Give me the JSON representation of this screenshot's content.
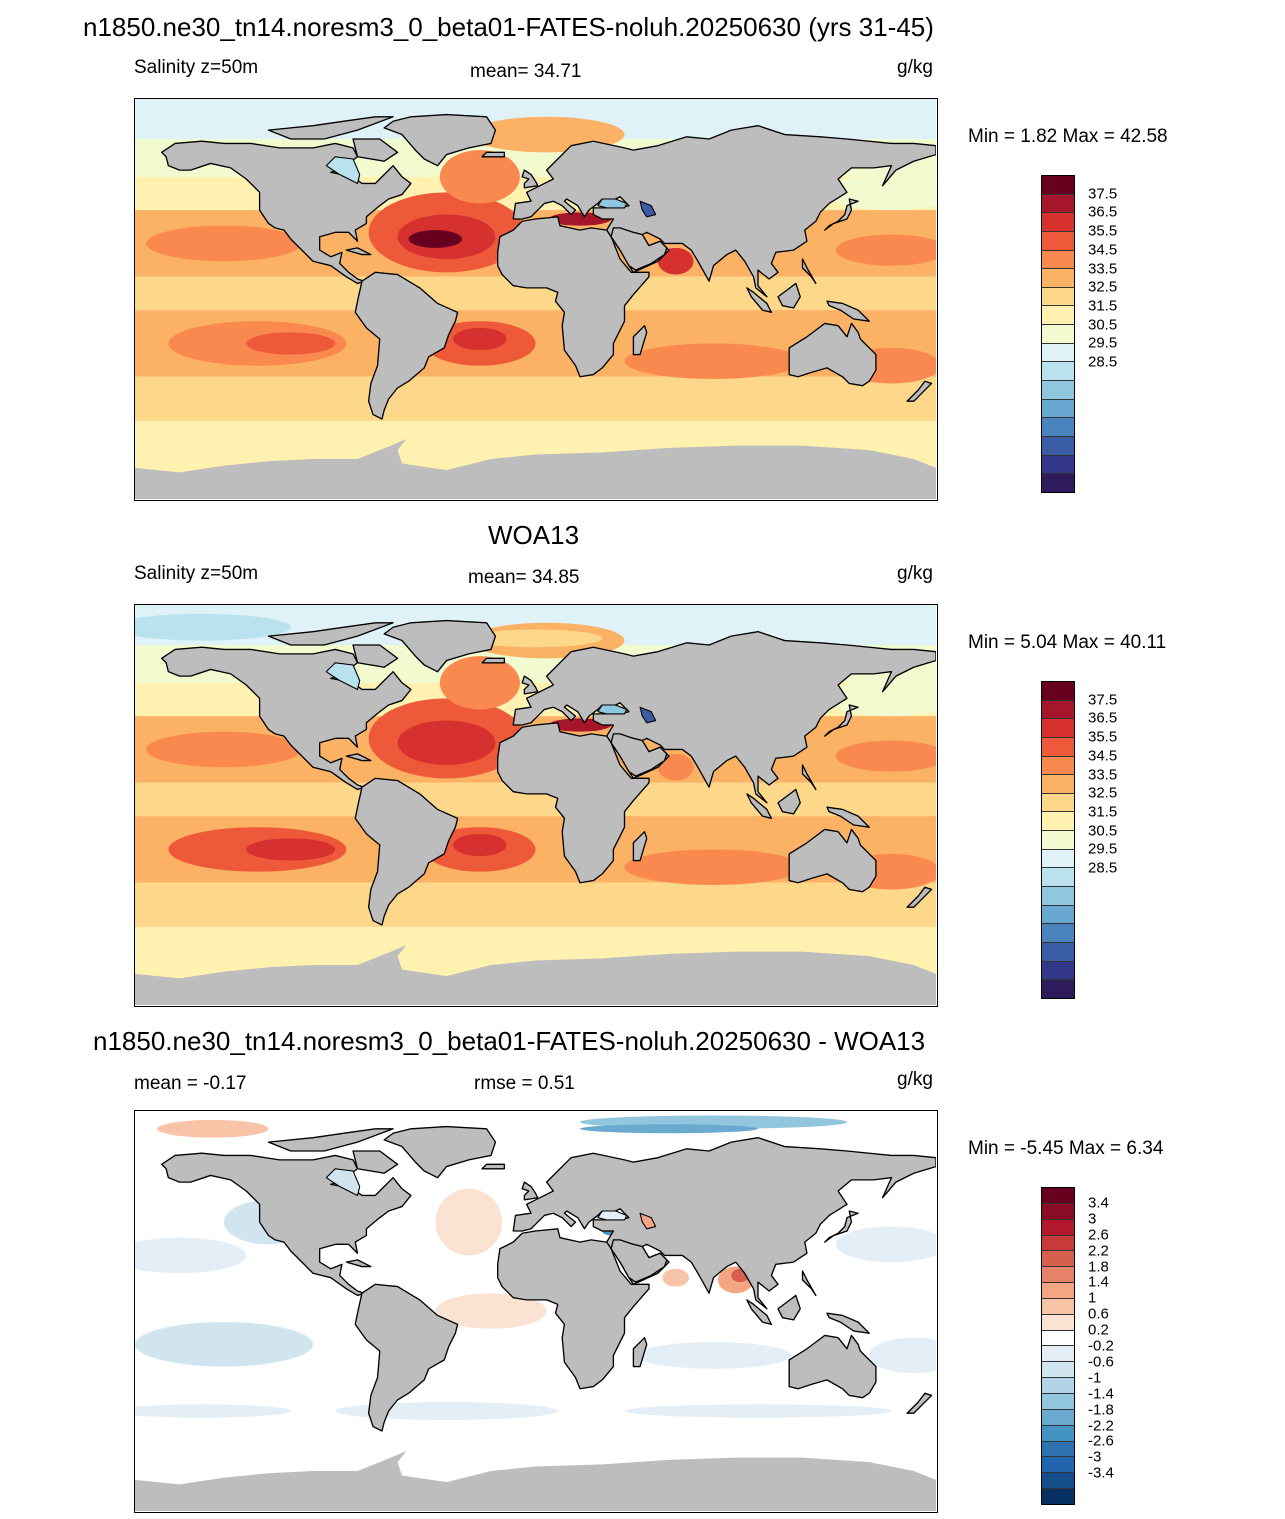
{
  "panels": [
    {
      "id": "model",
      "title": "n1850.ne30_tn14.noresm3_0_beta01-FATES-noluh.20250630 (yrs 31-45)",
      "left_label": "Salinity z=50m",
      "center_label": "mean=  34.71",
      "units": "g/kg",
      "minmax": "Min =   1.82 Max =  42.58",
      "colorbar": {
        "ticks": [
          "37.5",
          "36.5",
          "35.5",
          "34.5",
          "33.5",
          "32.5",
          "31.5",
          "30.5",
          "29.5",
          "28.5"
        ],
        "colors": [
          "#67001f",
          "#a5162a",
          "#d6302f",
          "#ee5a39",
          "#f9894f",
          "#fbb264",
          "#fdd78a",
          "#fff2b0",
          "#f2fbd0",
          "#dff2f7",
          "#b9e1ee",
          "#8fc6e0",
          "#68a8d0",
          "#4a84bf",
          "#3a5da6",
          "#33378a",
          "#2d1b5c"
        ]
      }
    },
    {
      "id": "obs",
      "title": "WOA13",
      "left_label": "Salinity z=50m",
      "center_label": "mean=  34.85",
      "units": "g/kg",
      "minmax": "Min =   5.04 Max =  40.11",
      "colorbar": {
        "ticks": [
          "37.5",
          "36.5",
          "35.5",
          "34.5",
          "33.5",
          "32.5",
          "31.5",
          "30.5",
          "29.5",
          "28.5"
        ],
        "colors": [
          "#67001f",
          "#a5162a",
          "#d6302f",
          "#ee5a39",
          "#f9894f",
          "#fbb264",
          "#fdd78a",
          "#fff2b0",
          "#f2fbd0",
          "#dff2f7",
          "#b9e1ee",
          "#8fc6e0",
          "#68a8d0",
          "#4a84bf",
          "#3a5da6",
          "#33378a",
          "#2d1b5c"
        ]
      }
    },
    {
      "id": "diff",
      "title": "n1850.ne30_tn14.noresm3_0_beta01-FATES-noluh.20250630 - WOA13",
      "left_label": "mean =  -0.17",
      "center_label": "rmse =   0.51",
      "units": "g/kg",
      "minmax": "Min =  -5.45 Max =   6.34",
      "colorbar": {
        "ticks": [
          "3.4",
          "3",
          "2.6",
          "2.2",
          "1.8",
          "1.4",
          "1",
          "0.6",
          "0.2",
          "-0.2",
          "-0.6",
          "-1",
          "-1.4",
          "-1.8",
          "-2.2",
          "-2.6",
          "-3",
          "-3.4"
        ],
        "colors": [
          "#67001f",
          "#8a0b25",
          "#b2182b",
          "#c83a3a",
          "#d6604d",
          "#e58267",
          "#f4a582",
          "#f8c4a8",
          "#fbe3d4",
          "#ffffff",
          "#e3eef6",
          "#d1e5f0",
          "#b3d4e8",
          "#92c5de",
          "#6aa9d0",
          "#4393c3",
          "#2e72b2",
          "#2166ac",
          "#154c8a",
          "#053061"
        ]
      }
    }
  ]
}
